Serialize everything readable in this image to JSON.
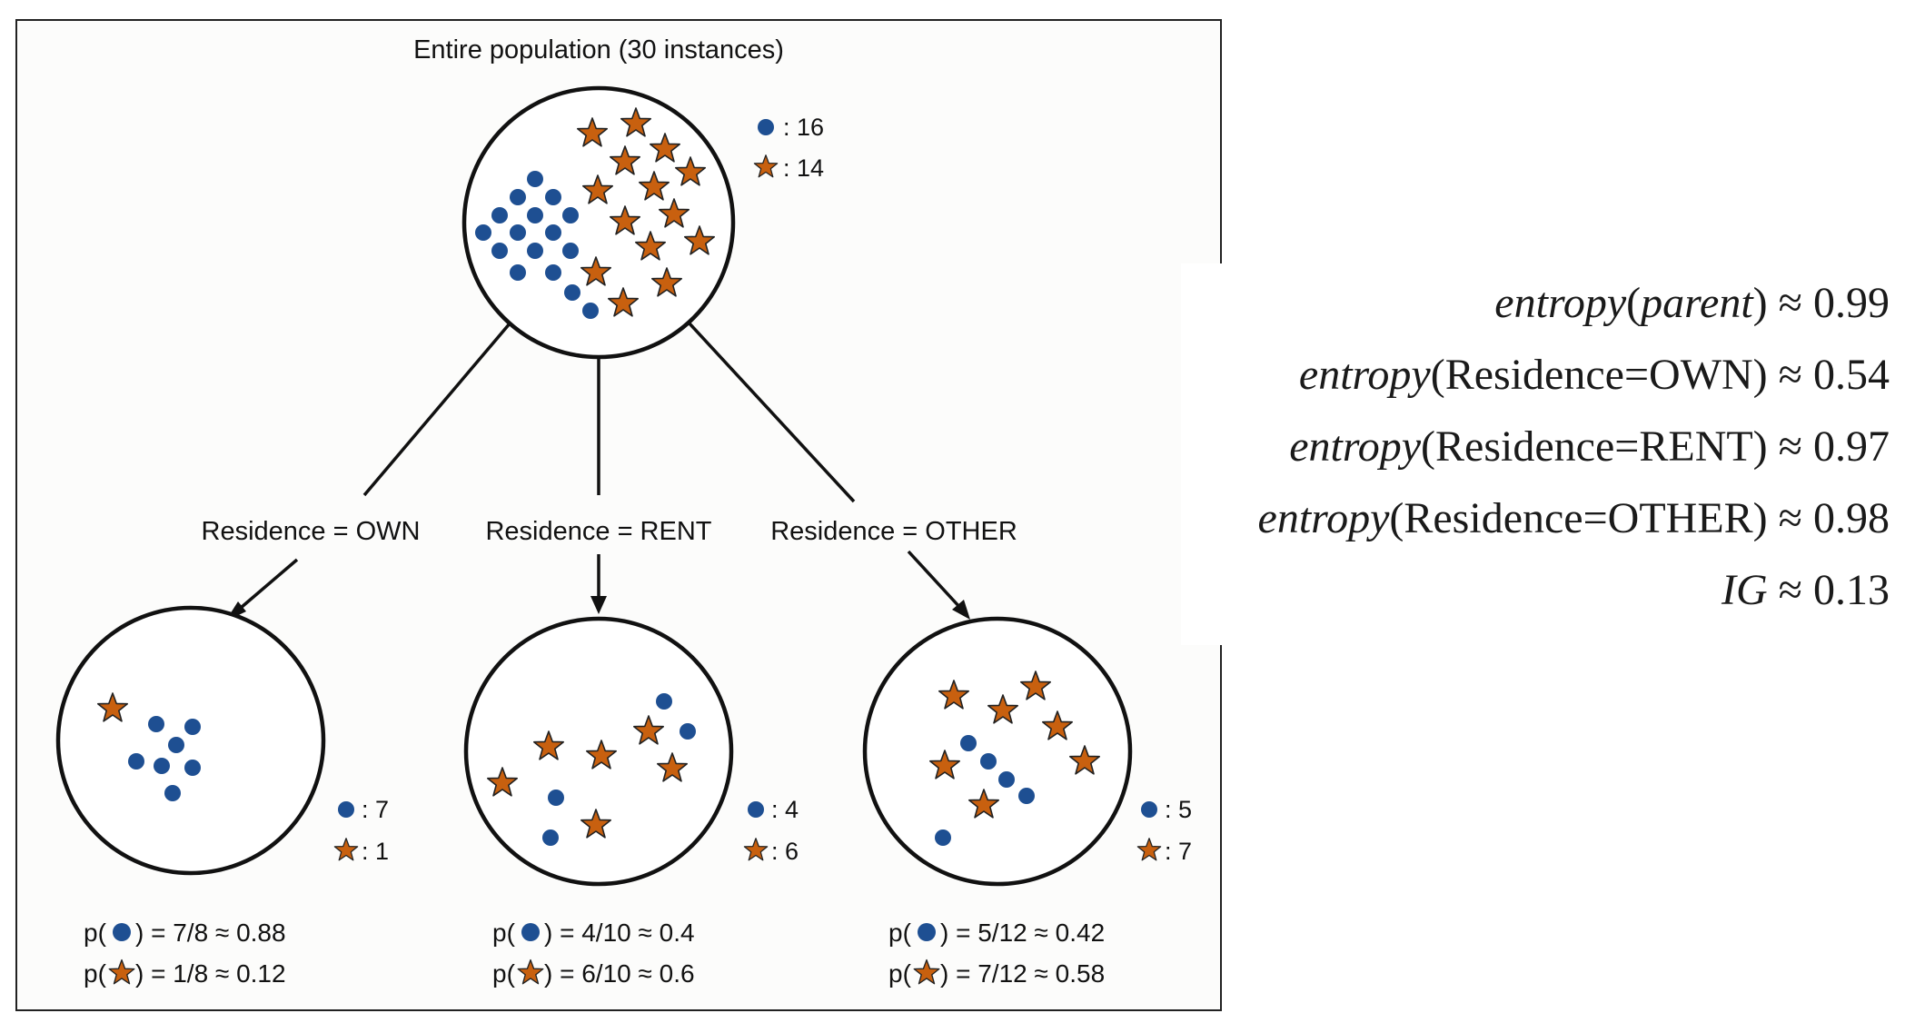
{
  "diagram": {
    "title": "Entire population (30 instances)",
    "colors": {
      "circle_class": "#1e4f92",
      "star_class": "#c8600f"
    },
    "root": {
      "legend": {
        "circle_count": ": 16",
        "star_count": ": 14"
      },
      "counts": {
        "circles": 16,
        "stars": 14
      }
    },
    "children": [
      {
        "edge_label": "Residence = OWN",
        "legend": {
          "circle_count": ": 7",
          "star_count": ": 1"
        },
        "counts": {
          "circles": 7,
          "stars": 1
        },
        "p_circle": {
          "prefix": "p(",
          "expr": ") = 7/8 ≈ 0.88"
        },
        "p_star": {
          "prefix": "p(",
          "expr": ") = 1/8 ≈ 0.12"
        }
      },
      {
        "edge_label": "Residence = RENT",
        "legend": {
          "circle_count": ": 4",
          "star_count": ": 6"
        },
        "counts": {
          "circles": 4,
          "stars": 6
        },
        "p_circle": {
          "prefix": "p(",
          "expr": ") = 4/10 ≈ 0.4"
        },
        "p_star": {
          "prefix": "p(",
          "expr": ") = 6/10 ≈ 0.6"
        }
      },
      {
        "edge_label": "Residence = OTHER",
        "legend": {
          "circle_count": ": 5",
          "star_count": ": 7"
        },
        "counts": {
          "circles": 5,
          "stars": 7
        },
        "p_circle": {
          "prefix": "p(",
          "expr": ") = 5/12 ≈ 0.42"
        },
        "p_star": {
          "prefix": "p(",
          "expr": ") = 7/12 ≈ 0.58"
        }
      }
    ]
  },
  "formulas": [
    {
      "fn": "entropy",
      "arg": "parent",
      "arg_italic": true,
      "value": "≈ 0.99"
    },
    {
      "fn": "entropy",
      "arg": "Residence=OWN",
      "arg_italic": false,
      "value": "≈ 0.54"
    },
    {
      "fn": "entropy",
      "arg": "Residence=RENT",
      "arg_italic": false,
      "value": "≈ 0.97"
    },
    {
      "fn": "entropy",
      "arg": "Residence=OTHER",
      "arg_italic": false,
      "value": "≈ 0.98"
    },
    {
      "fn": "IG",
      "arg": "",
      "arg_italic": false,
      "value": "≈ 0.13"
    }
  ]
}
